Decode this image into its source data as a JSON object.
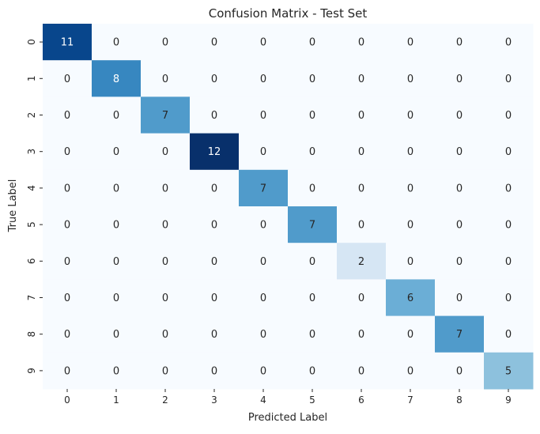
{
  "chart_data": {
    "type": "heatmap",
    "title": "Confusion Matrix - Test Set",
    "xlabel": "Predicted Label",
    "ylabel": "True Label",
    "x_categories": [
      "0",
      "1",
      "2",
      "3",
      "4",
      "5",
      "6",
      "7",
      "8",
      "9"
    ],
    "y_categories": [
      "0",
      "1",
      "2",
      "3",
      "4",
      "5",
      "6",
      "7",
      "8",
      "9"
    ],
    "values": [
      [
        11,
        0,
        0,
        0,
        0,
        0,
        0,
        0,
        0,
        0
      ],
      [
        0,
        8,
        0,
        0,
        0,
        0,
        0,
        0,
        0,
        0
      ],
      [
        0,
        0,
        7,
        0,
        0,
        0,
        0,
        0,
        0,
        0
      ],
      [
        0,
        0,
        0,
        12,
        0,
        0,
        0,
        0,
        0,
        0
      ],
      [
        0,
        0,
        0,
        0,
        7,
        0,
        0,
        0,
        0,
        0
      ],
      [
        0,
        0,
        0,
        0,
        0,
        7,
        0,
        0,
        0,
        0
      ],
      [
        0,
        0,
        0,
        0,
        0,
        0,
        2,
        0,
        0,
        0
      ],
      [
        0,
        0,
        0,
        0,
        0,
        0,
        0,
        6,
        0,
        0
      ],
      [
        0,
        0,
        0,
        0,
        0,
        0,
        0,
        0,
        7,
        0
      ],
      [
        0,
        0,
        0,
        0,
        0,
        0,
        0,
        0,
        0,
        5
      ]
    ],
    "colormap": "Blues",
    "value_range": [
      0,
      12
    ],
    "annotations": true,
    "colorbar": false,
    "grid": false
  }
}
